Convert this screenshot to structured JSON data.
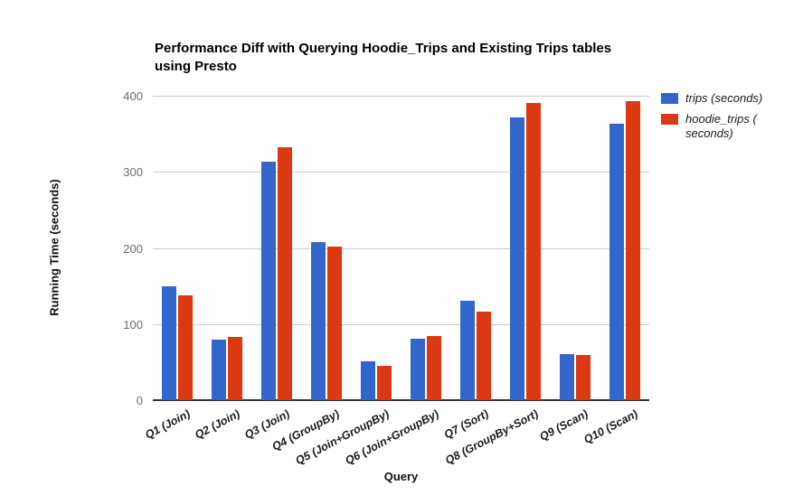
{
  "chart_data": {
    "type": "bar",
    "title_lines": [
      "Performance Diff with Querying Hoodie_Trips and Existing Trips tables",
      "using Presto"
    ],
    "xlabel": "Query",
    "ylabel": "Running Time (seconds)",
    "ylim": [
      0,
      400
    ],
    "yticks": [
      0,
      100,
      200,
      300,
      400
    ],
    "grid": true,
    "legend_position": "right",
    "categories": [
      "Q1 (Join)",
      "Q2 (Join)",
      "Q3 (Join)",
      "Q4 (GroupBy)",
      "Q5 (Join+GroupBy)",
      "Q6 (Join+GroupBy)",
      "Q7 (Sort)",
      "Q8 (GroupBy+Sort)",
      "Q9 (Scan)",
      "Q10 (Scan)"
    ],
    "series": [
      {
        "name": "trips (seconds)",
        "color": "#3366cc",
        "values": [
          150,
          80,
          313,
          208,
          51,
          81,
          131,
          371,
          61,
          363
        ]
      },
      {
        "name": "hoodie_trips ( seconds)",
        "color": "#dc3912",
        "values": [
          138,
          83,
          332,
          202,
          45,
          84,
          116,
          390,
          59,
          393
        ]
      }
    ]
  },
  "colors": {
    "background": "#ffffff",
    "gridline": "#cccccc",
    "axis_line": "#333333",
    "tick_label": "#6b6b6b",
    "text": "#1a1a1a"
  }
}
